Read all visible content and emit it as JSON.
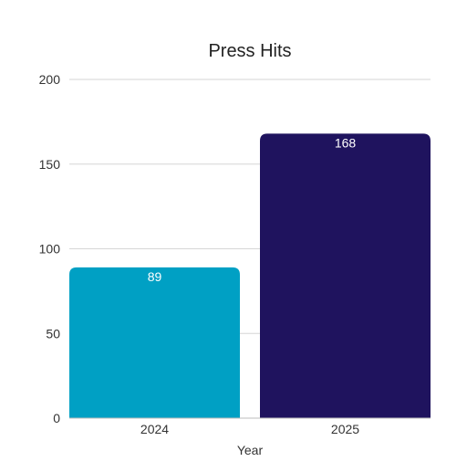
{
  "chart_data": {
    "type": "bar",
    "title": "Press Hits",
    "xlabel": "Year",
    "ylabel": "",
    "categories": [
      "2024",
      "2025"
    ],
    "values": [
      89,
      168
    ],
    "colors": [
      "#00a0c4",
      "#1f135e"
    ],
    "ylim": [
      0,
      200
    ],
    "yticks": [
      0,
      50,
      100,
      150,
      200
    ],
    "grid": true,
    "legend": "none",
    "data_labels": true
  }
}
